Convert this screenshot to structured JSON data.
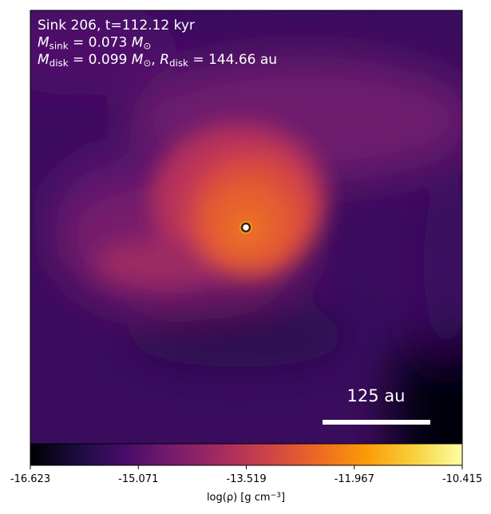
{
  "chart_data": {
    "type": "density-map",
    "annotations": [
      [
        {
          "text": "Sink 206, t=112.12 kyr",
          "style": "normal"
        }
      ],
      [
        {
          "text": "M",
          "style": "italic"
        },
        {
          "text": "sink",
          "style": "sub"
        },
        {
          "text": " = 0.073 ",
          "style": "normal"
        },
        {
          "text": "M",
          "style": "italic"
        },
        {
          "text": "⊙",
          "style": "sub"
        }
      ],
      [
        {
          "text": "M",
          "style": "italic"
        },
        {
          "text": "disk",
          "style": "sub"
        },
        {
          "text": " = 0.099 ",
          "style": "normal"
        },
        {
          "text": "M",
          "style": "italic"
        },
        {
          "text": "⊙",
          "style": "sub"
        },
        {
          "text": ", ",
          "style": "normal"
        },
        {
          "text": "R",
          "style": "italic"
        },
        {
          "text": "disk",
          "style": "sub"
        },
        {
          "text": " = 144.66 au",
          "style": "normal"
        }
      ]
    ],
    "scale_bar_label": "125 au",
    "colorbar": {
      "label": [
        {
          "text": "log(ρ) [g cm",
          "style": "normal"
        },
        {
          "text": "−3",
          "style": "sup"
        },
        {
          "text": "]",
          "style": "normal"
        }
      ],
      "lim": [
        -16.623,
        -10.415
      ],
      "ticks": [
        -16.623,
        -15.071,
        -13.519,
        -11.967,
        -10.415
      ],
      "cmap": [
        "#000004",
        "#1b0c41",
        "#4a0c6b",
        "#781c6d",
        "#a52c60",
        "#cf4446",
        "#ed6925",
        "#fb9b06",
        "#f7d13d",
        "#fcffa4"
      ]
    }
  }
}
